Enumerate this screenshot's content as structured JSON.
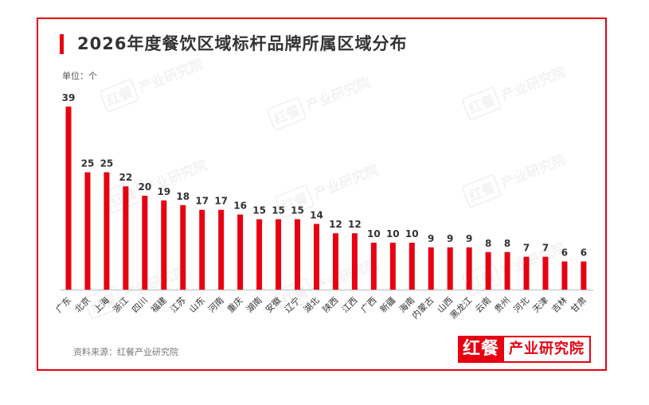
{
  "chart_data": {
    "type": "bar",
    "title": "2026年度餐饮区域标杆品牌所属区域分布",
    "ylabel": "单位：个",
    "xlabel": "",
    "categories": [
      "广东",
      "北京",
      "上海",
      "浙江",
      "四川",
      "福建",
      "江苏",
      "山东",
      "河南",
      "重庆",
      "湖南",
      "安徽",
      "辽宁",
      "湖北",
      "陕西",
      "江西",
      "广西",
      "新疆",
      "海南",
      "内蒙古",
      "山西",
      "黑龙江",
      "云南",
      "贵州",
      "河北",
      "天津",
      "吉林",
      "甘肃"
    ],
    "values": [
      39,
      25,
      25,
      22,
      20,
      19,
      18,
      17,
      17,
      16,
      15,
      15,
      15,
      14,
      12,
      12,
      10,
      10,
      10,
      9,
      9,
      9,
      8,
      8,
      7,
      7,
      6,
      6
    ],
    "ylim": [
      0,
      40
    ],
    "grid": false,
    "legend": false,
    "data_labels": true
  },
  "source": "资料来源：红餐产业研究院",
  "logo": {
    "brand": "红餐",
    "name": "产业研究院"
  },
  "watermark": {
    "brand": "红餐",
    "name": "产业研究院"
  },
  "colors": {
    "accent": "#e60012",
    "text": "#333333",
    "axis": "#bbbbbb",
    "watermark": "#8c8c8c"
  }
}
